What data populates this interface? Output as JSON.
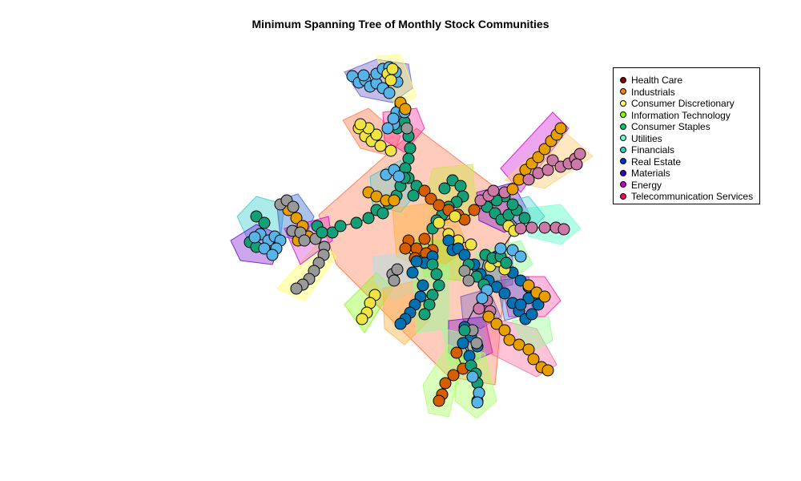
{
  "title": "Minimum Spanning Tree of Monthly Stock Communities",
  "legend": [
    {
      "label": "Health Care",
      "color": "#8b0000"
    },
    {
      "label": "Industrials",
      "color": "#ff7f00"
    },
    {
      "label": "Consumer Discretionary",
      "color": "#ffff66"
    },
    {
      "label": "Information Technology",
      "color": "#7fff00"
    },
    {
      "label": "Consumer Staples",
      "color": "#00cc66"
    },
    {
      "label": "Utilities",
      "color": "#66ffcc"
    },
    {
      "label": "Financials",
      "color": "#33cccc"
    },
    {
      "label": "Real Estate",
      "color": "#0033cc"
    },
    {
      "label": "Materials",
      "color": "#3300cc"
    },
    {
      "label": "Energy",
      "color": "#cc00cc"
    },
    {
      "label": "Telecommunication Services",
      "color": "#ff0066"
    }
  ]
}
